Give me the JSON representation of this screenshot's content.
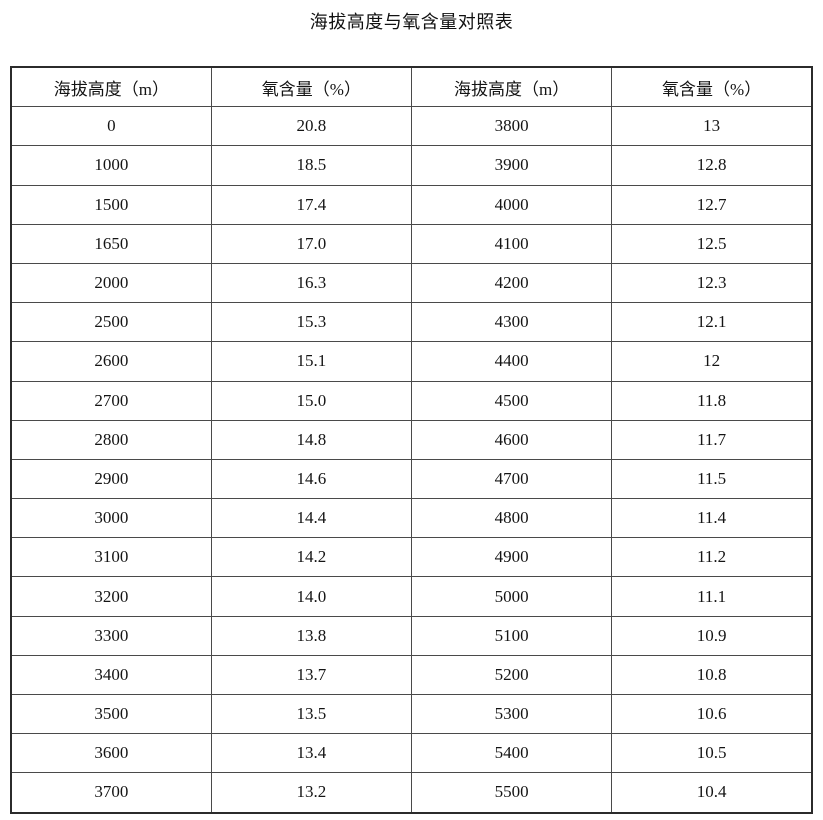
{
  "title": "海拔高度与氧含量对照表",
  "table": {
    "headers": [
      "海拔高度（m）",
      "氧含量（%）",
      "海拔高度（m）",
      "氧含量（%）"
    ],
    "rows": [
      [
        "0",
        "20.8",
        "3800",
        "13"
      ],
      [
        "1000",
        "18.5",
        "3900",
        "12.8"
      ],
      [
        "1500",
        "17.4",
        "4000",
        "12.7"
      ],
      [
        "1650",
        "17.0",
        "4100",
        "12.5"
      ],
      [
        "2000",
        "16.3",
        "4200",
        "12.3"
      ],
      [
        "2500",
        "15.3",
        "4300",
        "12.1"
      ],
      [
        "2600",
        "15.1",
        "4400",
        "12"
      ],
      [
        "2700",
        "15.0",
        "4500",
        "11.8"
      ],
      [
        "2800",
        "14.8",
        "4600",
        "11.7"
      ],
      [
        "2900",
        "14.6",
        "4700",
        "11.5"
      ],
      [
        "3000",
        "14.4",
        "4800",
        "11.4"
      ],
      [
        "3100",
        "14.2",
        "4900",
        "11.2"
      ],
      [
        "3200",
        "14.0",
        "5000",
        "11.1"
      ],
      [
        "3300",
        "13.8",
        "5100",
        "10.9"
      ],
      [
        "3400",
        "13.7",
        "5200",
        "10.8"
      ],
      [
        "3500",
        "13.5",
        "5300",
        "10.6"
      ],
      [
        "3600",
        "13.4",
        "5400",
        "10.5"
      ],
      [
        "3700",
        "13.2",
        "5500",
        "10.4"
      ]
    ]
  },
  "chart_data": {
    "type": "table",
    "title": "海拔高度与氧含量对照表",
    "columns": [
      "海拔高度（m）",
      "氧含量（%）"
    ],
    "altitude_m": [
      0,
      1000,
      1500,
      1650,
      2000,
      2500,
      2600,
      2700,
      2800,
      2900,
      3000,
      3100,
      3200,
      3300,
      3400,
      3500,
      3600,
      3700,
      3800,
      3900,
      4000,
      4100,
      4200,
      4300,
      4400,
      4500,
      4600,
      4700,
      4800,
      4900,
      5000,
      5100,
      5200,
      5300,
      5400,
      5500
    ],
    "oxygen_pct": [
      20.8,
      18.5,
      17.4,
      17.0,
      16.3,
      15.3,
      15.1,
      15.0,
      14.8,
      14.6,
      14.4,
      14.2,
      14.0,
      13.8,
      13.7,
      13.5,
      13.4,
      13.2,
      13,
      12.8,
      12.7,
      12.5,
      12.3,
      12.1,
      12,
      11.8,
      11.7,
      11.5,
      11.4,
      11.2,
      11.1,
      10.9,
      10.8,
      10.6,
      10.5,
      10.4
    ]
  }
}
